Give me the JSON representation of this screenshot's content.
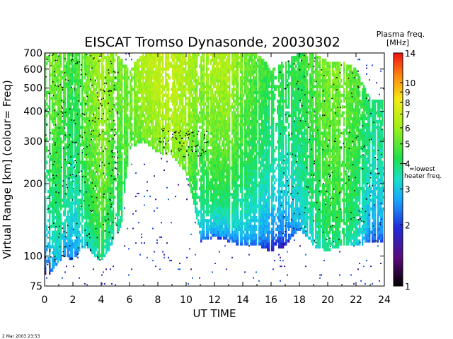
{
  "chart_data": {
    "type": "heatmap",
    "title": "EISCAT Tromso Dynasonde,  20030302",
    "xlabel": "UT TIME",
    "ylabel": "Virtual Range [km]   (colour= Freq)",
    "x_ticks": [
      "0",
      "2",
      "4",
      "6",
      "8",
      "10",
      "12",
      "14",
      "16",
      "18",
      "20",
      "22",
      "24"
    ],
    "y_ticks": [
      "75",
      "100",
      "200",
      "300",
      "400",
      "500",
      "600",
      "700"
    ],
    "y_scale": "log",
    "xlim": [
      0,
      24
    ],
    "ylim": [
      75,
      700
    ],
    "colorbar": {
      "title": "Plasma freq.",
      "unit": "[MHz]",
      "ticks": [
        "1",
        "2",
        "3",
        "4",
        "5",
        "6",
        "7",
        "8",
        "9",
        "10",
        "14"
      ],
      "scale": "log",
      "range": [
        1,
        14
      ],
      "annotation_value": "4",
      "annotation_label_1": "=lowest",
      "annotation_label_2": "heater freq."
    },
    "series": [
      {
        "x": [
          0.1,
          0.5,
          1.0,
          1.5,
          2.0,
          2.5,
          3.0,
          3.5,
          4.0,
          4.5,
          5.0,
          5.5,
          6.0,
          7.0,
          8.0,
          9.0,
          10.0,
          11.0,
          12.0,
          13.0,
          14.0,
          15.0,
          16.0,
          17.0,
          18.0,
          19.0,
          20.0,
          21.0,
          22.0,
          23.0
        ],
        "low_range_km": [
          85,
          85,
          95,
          100,
          95,
          105,
          110,
          100,
          95,
          105,
          115,
          140,
          280,
          300,
          270,
          260,
          220,
          115,
          120,
          115,
          110,
          110,
          105,
          110,
          130,
          110,
          105,
          110,
          110,
          115
        ],
        "high_range_km": [
          700,
          700,
          700,
          700,
          700,
          700,
          700,
          700,
          700,
          700,
          700,
          650,
          600,
          700,
          700,
          700,
          700,
          700,
          700,
          700,
          700,
          700,
          600,
          650,
          700,
          700,
          650,
          650,
          600,
          450
        ],
        "f_low_mhz": [
          1.5,
          2.0,
          2.5,
          2.2,
          2.0,
          2.5,
          3.0,
          3.0,
          3.5,
          3.0,
          3.0,
          3.5,
          4.5,
          5.0,
          5.0,
          5.5,
          5.0,
          2.0,
          1.8,
          1.8,
          2.0,
          2.0,
          1.5,
          1.5,
          2.5,
          3.0,
          3.5,
          3.5,
          3.0,
          2.0
        ],
        "f_high_mhz": [
          5.0,
          5.5,
          5.5,
          5.0,
          4.5,
          5.0,
          5.5,
          6.0,
          6.5,
          6.0,
          5.5,
          5.5,
          5.5,
          6.5,
          7.0,
          7.0,
          6.5,
          6.0,
          6.5,
          6.5,
          5.5,
          5.0,
          4.5,
          4.5,
          4.5,
          5.0,
          5.5,
          5.5,
          5.0,
          4.0
        ]
      }
    ],
    "timestamp": "2 Mar 2003 23:53"
  }
}
